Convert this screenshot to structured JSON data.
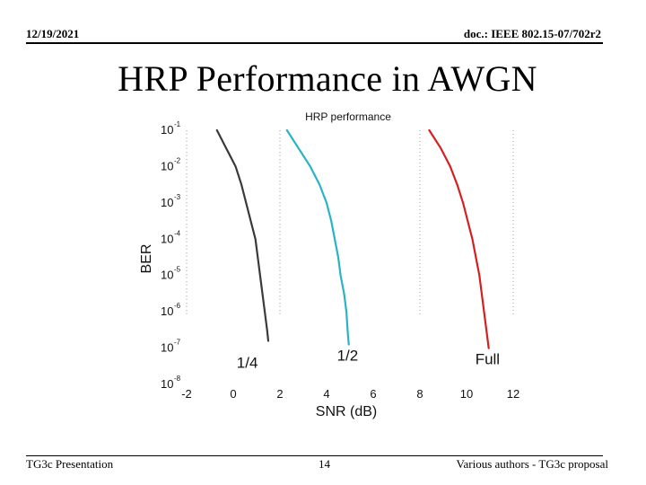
{
  "header": {
    "date": "12/19/2021",
    "doc": "doc.: IEEE 802.15-07/702r2"
  },
  "slide": {
    "title": "HRP Performance in AWGN"
  },
  "footer": {
    "left": "TG3c Presentation",
    "page": "14",
    "right": "Various authors - TG3c proposal"
  },
  "chart_data": {
    "type": "line",
    "title": "HRP performance",
    "xlabel": "SNR (dB)",
    "ylabel": "BER",
    "xlim": [
      -2,
      12
    ],
    "ylim_log10": [
      -8,
      -1
    ],
    "yscale": "log",
    "grid": "dotted vertical",
    "x_ticks": [
      "-2",
      "0",
      "2",
      "4",
      "6",
      "8",
      "10",
      "12"
    ],
    "y_ticks": [
      {
        "base": "10",
        "exp": "-1"
      },
      {
        "base": "10",
        "exp": "-2"
      },
      {
        "base": "10",
        "exp": "-3"
      },
      {
        "base": "10",
        "exp": "-4"
      },
      {
        "base": "10",
        "exp": "-5"
      },
      {
        "base": "10",
        "exp": "-6"
      },
      {
        "base": "10",
        "exp": "-7"
      },
      {
        "base": "10",
        "exp": "-8"
      }
    ],
    "annotations": [
      {
        "text": "1/4",
        "x": 0.6,
        "y_log10": -7.4
      },
      {
        "text": "1/2",
        "x": 4.9,
        "y_log10": -7.2
      },
      {
        "text": "Full",
        "x": 10.9,
        "y_log10": -7.3
      }
    ],
    "series": [
      {
        "color": "#3a3a3a",
        "points": [
          [
            -0.7,
            -1.0
          ],
          [
            -0.3,
            -1.5
          ],
          [
            0.1,
            -2.0
          ],
          [
            0.35,
            -2.5
          ],
          [
            0.55,
            -3.0
          ],
          [
            0.75,
            -3.5
          ],
          [
            0.95,
            -4.0
          ],
          [
            1.05,
            -4.5
          ],
          [
            1.15,
            -5.0
          ],
          [
            1.25,
            -5.5
          ],
          [
            1.35,
            -6.0
          ],
          [
            1.45,
            -6.5
          ],
          [
            1.5,
            -6.8
          ]
        ]
      },
      {
        "color": "#2ab3c4",
        "points": [
          [
            2.3,
            -1.0
          ],
          [
            2.8,
            -1.5
          ],
          [
            3.3,
            -2.0
          ],
          [
            3.7,
            -2.5
          ],
          [
            4.0,
            -3.0
          ],
          [
            4.2,
            -3.5
          ],
          [
            4.35,
            -4.0
          ],
          [
            4.5,
            -4.5
          ],
          [
            4.6,
            -5.0
          ],
          [
            4.75,
            -5.5
          ],
          [
            4.85,
            -6.0
          ],
          [
            4.9,
            -6.5
          ],
          [
            4.95,
            -6.9
          ]
        ]
      },
      {
        "color": "#d42020",
        "points": [
          [
            8.4,
            -1.0
          ],
          [
            8.9,
            -1.5
          ],
          [
            9.3,
            -2.0
          ],
          [
            9.6,
            -2.5
          ],
          [
            9.85,
            -3.0
          ],
          [
            10.05,
            -3.5
          ],
          [
            10.25,
            -4.0
          ],
          [
            10.4,
            -4.5
          ],
          [
            10.55,
            -5.0
          ],
          [
            10.65,
            -5.5
          ],
          [
            10.75,
            -6.0
          ],
          [
            10.85,
            -6.5
          ],
          [
            10.95,
            -7.0
          ]
        ]
      }
    ]
  }
}
